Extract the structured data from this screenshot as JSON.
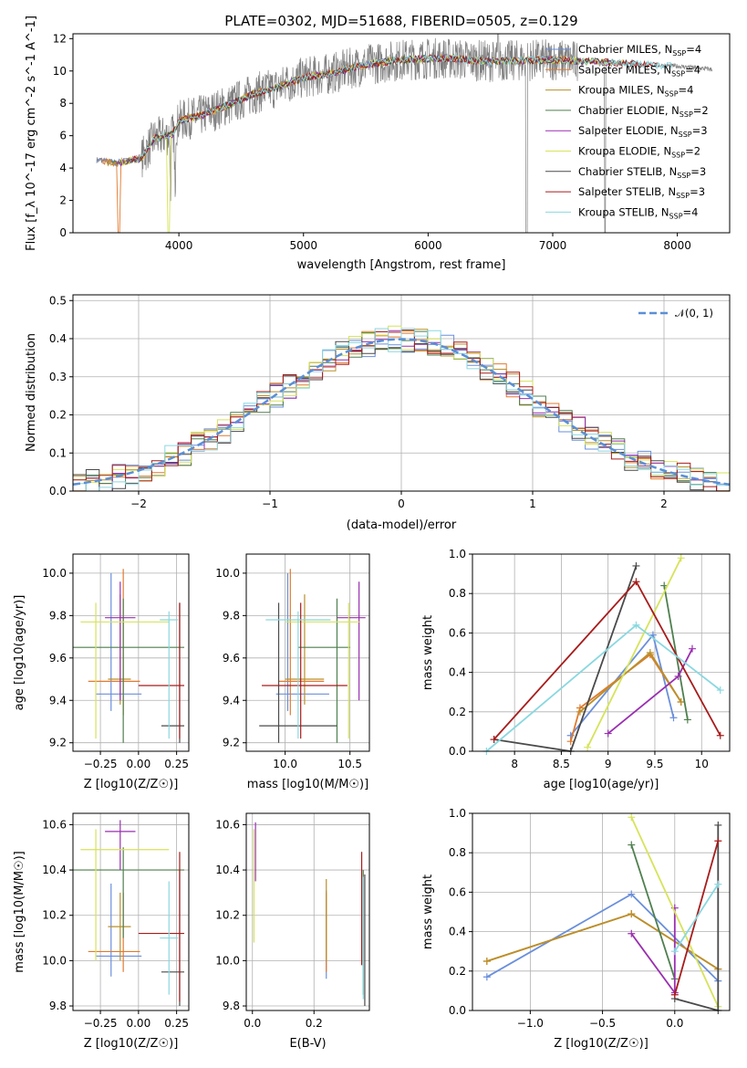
{
  "chart_data": [
    {
      "type": "line",
      "title": "PLATE=0302, MJD=51688, FIBERID=0505, z=0.129",
      "xlabel": "wavelength [Angstrom, rest frame]",
      "ylabel": "Flux [f_λ 10^-17 erg cm^-2 s^-1 A^-1]",
      "xlim": [
        3150,
        8420
      ],
      "ylim": [
        0,
        12.3
      ],
      "xticks": [
        4000,
        5000,
        6000,
        7000,
        8000
      ],
      "yticks": [
        0,
        2,
        4,
        6,
        8,
        10,
        12
      ],
      "data_range": [
        3340,
        8280
      ],
      "legend_position": "top-right",
      "series": [
        {
          "name": "Chabrier MILES, N",
          "sub": "SSP",
          "suffix": "=4",
          "color": "#6a8fdb"
        },
        {
          "name": "Salpeter MILES, N",
          "sub": "SSP",
          "suffix": "=4",
          "color": "#e07a2e"
        },
        {
          "name": "Kroupa MILES, N",
          "sub": "SSP",
          "suffix": "=4",
          "color": "#b9902c"
        },
        {
          "name": "Chabrier ELODIE, N",
          "sub": "SSP",
          "suffix": "=2",
          "color": "#4e7f4e"
        },
        {
          "name": "Salpeter ELODIE, N",
          "sub": "SSP",
          "suffix": "=3",
          "color": "#9a2fb0"
        },
        {
          "name": "Kroupa ELODIE, N",
          "sub": "SSP",
          "suffix": "=2",
          "color": "#d6e35a"
        },
        {
          "name": "Chabrier STELIB, N",
          "sub": "SSP",
          "suffix": "=3",
          "color": "#4a4a4a"
        },
        {
          "name": "Salpeter STELIB, N",
          "sub": "SSP",
          "suffix": "=3",
          "color": "#a81c1c"
        },
        {
          "name": "Kroupa STELIB, N",
          "sub": "SSP",
          "suffix": "=4",
          "color": "#8ad8e0"
        }
      ],
      "data_color": "#808080",
      "continuum": [
        [
          3340,
          4.5
        ],
        [
          3500,
          4.3
        ],
        [
          3700,
          4.6
        ],
        [
          3800,
          5.8
        ],
        [
          3950,
          6.1
        ],
        [
          4000,
          6.9
        ],
        [
          4200,
          7.3
        ],
        [
          4400,
          7.9
        ],
        [
          4600,
          8.6
        ],
        [
          4800,
          9.0
        ],
        [
          5000,
          9.6
        ],
        [
          5200,
          9.8
        ],
        [
          5500,
          10.4
        ],
        [
          5800,
          10.7
        ],
        [
          6100,
          10.8
        ],
        [
          6500,
          10.6
        ],
        [
          7000,
          10.7
        ],
        [
          7500,
          10.5
        ],
        [
          8000,
          10.3
        ],
        [
          8280,
          10.1
        ]
      ]
    },
    {
      "type": "line",
      "xlabel": "(data-model)/error",
      "ylabel": "Normed distribution",
      "xlim": [
        -2.5,
        2.5
      ],
      "ylim": [
        0,
        0.515
      ],
      "xticks": [
        -2,
        -1,
        0,
        1,
        2
      ],
      "yticks": [
        0.0,
        0.1,
        0.2,
        0.3,
        0.4,
        0.5
      ],
      "grid": true,
      "legend_position": "top-right",
      "reference": {
        "label": "𝒩(0, 1)",
        "color": "#5b8fd6"
      },
      "bin_width": 0.1
    },
    {
      "type": "scatter",
      "xlabel": "Z [log10(Z/Z☉)]",
      "ylabel": "age [log10(age/yr)]",
      "xlim": [
        -0.43,
        0.33
      ],
      "ylim": [
        9.16,
        10.09
      ],
      "xticks": [
        -0.25,
        0.0,
        0.25
      ],
      "xticklabels": [
        "−0.25",
        "0.00",
        "0.25"
      ],
      "yticks": [
        9.2,
        9.4,
        9.6,
        9.8,
        10.0
      ],
      "grid": true
    },
    {
      "type": "scatter",
      "xlabel": "mass [log10(M/M☉)]",
      "xlim": [
        9.7,
        10.65
      ],
      "ylim": [
        9.16,
        10.09
      ],
      "xticks": [
        10.0,
        10.5
      ],
      "xticklabels": [
        "10.0",
        "10.5"
      ],
      "yticks": [
        9.2,
        9.4,
        9.6,
        9.8,
        10.0
      ],
      "grid": true
    },
    {
      "type": "line",
      "xlabel": "age [log10(age/yr)]",
      "ylabel": "mass weight",
      "xlim": [
        7.55,
        10.3
      ],
      "ylim": [
        0,
        1
      ],
      "xticks": [
        8.0,
        8.5,
        9.0,
        9.5,
        10.0
      ],
      "yticks": [
        0.0,
        0.2,
        0.4,
        0.6,
        0.8,
        1.0
      ],
      "grid": true,
      "series": [
        {
          "name": "Chabrier MILES",
          "points": [
            [
              8.6,
              0.08
            ],
            [
              9.48,
              0.59
            ],
            [
              9.7,
              0.17
            ]
          ]
        },
        {
          "name": "Salpeter MILES",
          "points": [
            [
              8.6,
              0.05
            ],
            [
              8.7,
              0.22
            ],
            [
              9.45,
              0.49
            ],
            [
              9.78,
              0.25
            ]
          ]
        },
        {
          "name": "Kroupa MILES",
          "points": [
            [
              8.7,
              0.2
            ],
            [
              9.45,
              0.5
            ],
            [
              9.78,
              0.25
            ]
          ]
        },
        {
          "name": "Chabrier ELODIE",
          "points": [
            [
              9.6,
              0.84
            ],
            [
              9.85,
              0.16
            ]
          ]
        },
        {
          "name": "Salpeter ELODIE",
          "points": [
            [
              9.0,
              0.09
            ],
            [
              9.75,
              0.38
            ],
            [
              9.9,
              0.52
            ]
          ]
        },
        {
          "name": "Kroupa ELODIE",
          "points": [
            [
              8.78,
              0.02
            ],
            [
              9.78,
              0.98
            ]
          ]
        },
        {
          "name": "Chabrier STELIB",
          "points": [
            [
              7.78,
              0.06
            ],
            [
              8.6,
              0.0
            ],
            [
              9.3,
              0.94
            ]
          ]
        },
        {
          "name": "Salpeter STELIB",
          "points": [
            [
              7.78,
              0.06
            ],
            [
              9.3,
              0.86
            ],
            [
              10.2,
              0.08
            ]
          ]
        },
        {
          "name": "Kroupa STELIB",
          "points": [
            [
              7.7,
              0.0
            ],
            [
              9.3,
              0.64
            ],
            [
              10.2,
              0.31
            ]
          ]
        }
      ]
    },
    {
      "type": "scatter",
      "xlabel": "Z [log10(Z/Z☉)]",
      "ylabel": "mass [log10(M/M☉)]",
      "xlim": [
        -0.43,
        0.33
      ],
      "ylim": [
        9.78,
        10.65
      ],
      "xticks": [
        -0.25,
        0.0,
        0.25
      ],
      "xticklabels": [
        "−0.25",
        "0.00",
        "0.25"
      ],
      "yticks": [
        9.8,
        10.0,
        10.2,
        10.4,
        10.6
      ],
      "grid": true
    },
    {
      "type": "scatter",
      "xlabel": "E(B-V)",
      "xlim": [
        -0.02,
        0.38
      ],
      "ylim": [
        9.78,
        10.65
      ],
      "xticks": [
        0.0,
        0.2
      ],
      "xticklabels": [
        "0.0",
        "0.2"
      ],
      "yticks": [
        9.8,
        10.0,
        10.2,
        10.4,
        10.6
      ],
      "grid": true
    },
    {
      "type": "line",
      "xlabel": "Z [log10(Z/Z☉)]",
      "ylabel": "mass weight",
      "xlim": [
        -1.4,
        0.38
      ],
      "ylim": [
        0,
        1
      ],
      "xticks": [
        -1.0,
        -0.5,
        0.0
      ],
      "xticklabels": [
        "−1.0",
        "−0.5",
        "0.0"
      ],
      "yticks": [
        0.0,
        0.2,
        0.4,
        0.6,
        0.8,
        1.0
      ],
      "grid": true,
      "series": [
        {
          "name": "Chabrier MILES",
          "points": [
            [
              -1.3,
              0.17
            ],
            [
              -0.3,
              0.59
            ],
            [
              0.3,
              0.15
            ]
          ]
        },
        {
          "name": "Salpeter MILES",
          "points": [
            [
              -1.3,
              0.25
            ],
            [
              -0.3,
              0.49
            ],
            [
              0.3,
              0.21
            ]
          ]
        },
        {
          "name": "Kroupa MILES",
          "points": [
            [
              -1.3,
              0.25
            ],
            [
              -0.3,
              0.49
            ],
            [
              0.3,
              0.21
            ]
          ]
        },
        {
          "name": "Chabrier ELODIE",
          "points": [
            [
              -0.3,
              0.84
            ],
            [
              0.0,
              0.16
            ]
          ]
        },
        {
          "name": "Salpeter ELODIE",
          "points": [
            [
              -0.3,
              0.39
            ],
            [
              0.0,
              0.09
            ],
            [
              0.0,
              0.52
            ]
          ]
        },
        {
          "name": "Kroupa ELODIE",
          "points": [
            [
              -0.3,
              0.98
            ],
            [
              0.3,
              0.02
            ]
          ]
        },
        {
          "name": "Chabrier STELIB",
          "points": [
            [
              0.0,
              0.06
            ],
            [
              0.3,
              0.0
            ],
            [
              0.3,
              0.94
            ]
          ]
        },
        {
          "name": "Salpeter STELIB",
          "points": [
            [
              0.0,
              0.08
            ],
            [
              0.3,
              0.86
            ]
          ]
        },
        {
          "name": "Kroupa STELIB",
          "points": [
            [
              0.0,
              0.3
            ],
            [
              0.3,
              0.64
            ]
          ]
        }
      ]
    }
  ],
  "scatter_points": [
    {
      "name": "Chabrier MILES",
      "Z": -0.18,
      "Zerr": [
        -0.28,
        0.02
      ],
      "age": 9.43,
      "ageErr": [
        9.35,
        10.0
      ],
      "mass": 10.02,
      "massErr": [
        9.93,
        10.34
      ],
      "ebv": 0.24,
      "ebvErr": [
        9.92,
        10.31
      ]
    },
    {
      "name": "Salpeter MILES",
      "Z": -0.1,
      "Zerr": [
        -0.33,
        0.01
      ],
      "age": 9.49,
      "ageErr": [
        9.33,
        10.02
      ],
      "mass": 10.04,
      "massErr": [
        9.95,
        10.3
      ],
      "ebv": 0.24,
      "ebvErr": [
        9.95,
        10.3
      ]
    },
    {
      "name": "Kroupa MILES",
      "Z": -0.12,
      "Zerr": [
        -0.2,
        -0.05
      ],
      "age": 9.5,
      "ageErr": [
        9.38,
        9.9
      ],
      "mass": 10.15,
      "massErr": [
        10.0,
        10.3
      ],
      "ebv": 0.24,
      "ebvErr": [
        10.0,
        10.36
      ]
    },
    {
      "name": "Chabrier ELODIE",
      "Z": -0.1,
      "Zerr": [
        -0.43,
        0.3
      ],
      "age": 9.65,
      "ageErr": [
        9.2,
        9.88
      ],
      "mass": 10.4,
      "massErr": [
        10.1,
        10.5
      ],
      "ebv": 0.36,
      "ebvErr": [
        9.85,
        10.4
      ]
    },
    {
      "name": "Salpeter ELODIE",
      "Z": -0.12,
      "Zerr": [
        -0.22,
        -0.02
      ],
      "age": 9.79,
      "ageErr": [
        9.4,
        9.96
      ],
      "mass": 10.57,
      "massErr": [
        10.4,
        10.62
      ],
      "ebv": 0.01,
      "ebvErr": [
        10.35,
        10.61
      ]
    },
    {
      "name": "Kroupa ELODIE",
      "Z": -0.28,
      "Zerr": [
        -0.38,
        0.2
      ],
      "age": 9.77,
      "ageErr": [
        9.22,
        9.86
      ],
      "mass": 10.49,
      "massErr": [
        10.0,
        10.58
      ],
      "ebv": 0.005,
      "ebvErr": [
        10.08,
        10.58
      ]
    },
    {
      "name": "Chabrier STELIB",
      "Z": 0.27,
      "Zerr": [
        0.15,
        0.3
      ],
      "age": 9.28,
      "ageErr": [
        9.2,
        9.86
      ],
      "mass": 9.95,
      "massErr": [
        9.8,
        10.4
      ],
      "ebv": 0.365,
      "ebvErr": [
        9.8,
        10.38
      ]
    },
    {
      "name": "Salpeter STELIB",
      "Z": 0.27,
      "Zerr": [
        0.0,
        0.3
      ],
      "age": 9.47,
      "ageErr": [
        9.22,
        9.86
      ],
      "mass": 10.12,
      "massErr": [
        9.82,
        10.48
      ],
      "ebv": 0.355,
      "ebvErr": [
        9.98,
        10.48
      ]
    },
    {
      "name": "Kroupa STELIB",
      "Z": 0.2,
      "Zerr": [
        0.14,
        0.26
      ],
      "age": 9.78,
      "ageErr": [
        9.22,
        9.82
      ],
      "mass": 10.1,
      "massErr": [
        9.85,
        10.35
      ],
      "ebv": 0.36,
      "ebvErr": [
        9.83,
        10.37
      ]
    }
  ]
}
